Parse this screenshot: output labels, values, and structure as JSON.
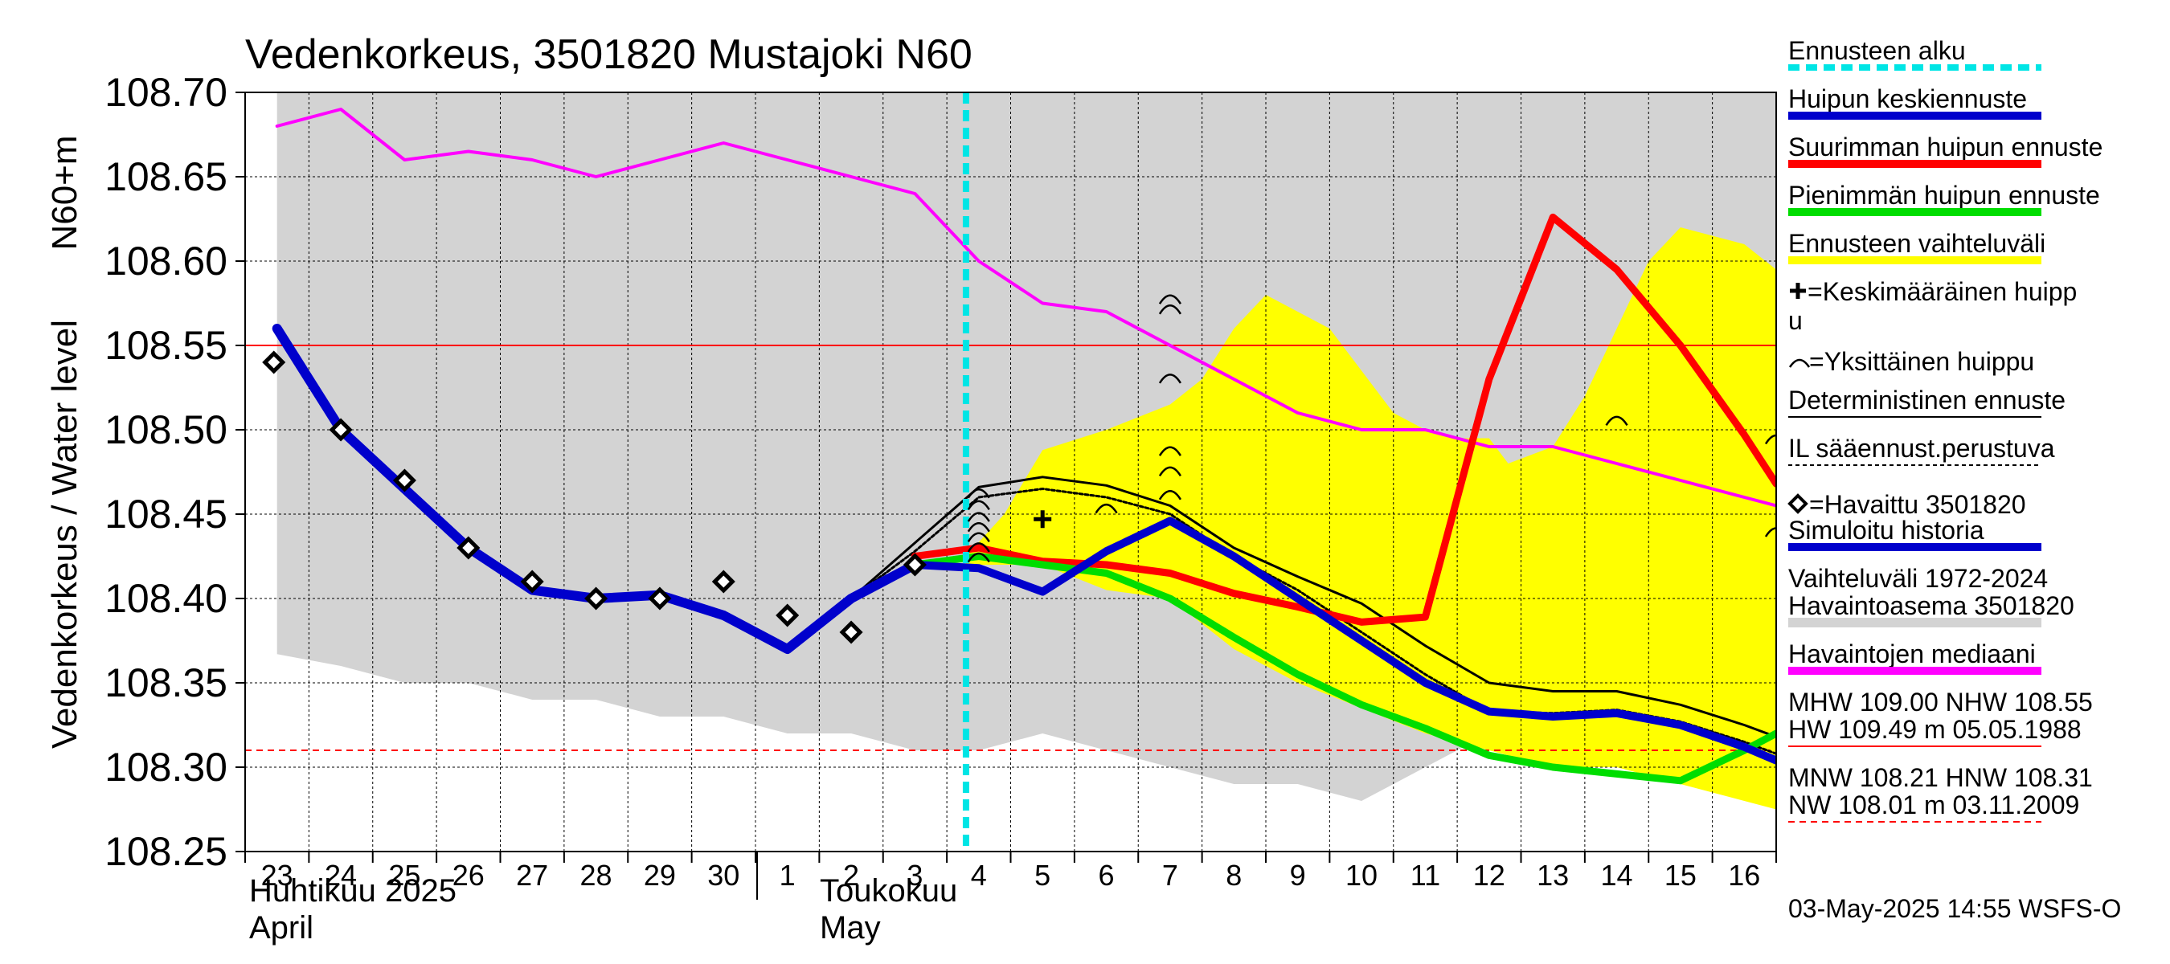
{
  "chart_data": {
    "type": "line",
    "title": "Vedenkorkeus, 3501820 Mustajoki N60",
    "ylabel": "Vedenkorkeus / Water level",
    "ylabel_unit": "N60+m",
    "ylim": [
      108.25,
      108.7
    ],
    "yticks": [
      "108.70",
      "108.65",
      "108.60",
      "108.55",
      "108.50",
      "108.45",
      "108.40",
      "108.35",
      "108.30",
      "108.25"
    ],
    "x_days": [
      "23",
      "24",
      "25",
      "26",
      "27",
      "28",
      "29",
      "30",
      "1",
      "2",
      "3",
      "4",
      "5",
      "6",
      "7",
      "8",
      "9",
      "10",
      "11",
      "12",
      "13",
      "14",
      "15",
      "16"
    ],
    "month_labels": [
      {
        "fi": "Huhtikuu  2025",
        "en": "April"
      },
      {
        "fi": "Toukokuu",
        "en": "May"
      }
    ],
    "forecast_start_day": 10.8,
    "gray_band": {
      "upper": [
        [
          0,
          108.7
        ],
        [
          23.5,
          108.7
        ]
      ],
      "lower": [
        [
          0,
          108.367
        ],
        [
          1,
          108.36
        ],
        [
          2,
          108.35
        ],
        [
          3,
          108.35
        ],
        [
          4,
          108.34
        ],
        [
          5,
          108.34
        ],
        [
          6,
          108.33
        ],
        [
          7,
          108.33
        ],
        [
          8,
          108.32
        ],
        [
          9,
          108.32
        ],
        [
          10,
          108.31
        ],
        [
          11,
          108.31
        ],
        [
          12,
          108.32
        ],
        [
          13,
          108.31
        ],
        [
          14,
          108.3
        ],
        [
          15,
          108.29
        ],
        [
          16,
          108.29
        ],
        [
          17,
          108.28
        ],
        [
          18,
          108.3
        ],
        [
          19,
          108.32
        ],
        [
          20,
          108.32
        ],
        [
          21,
          108.32
        ],
        [
          22,
          108.32
        ],
        [
          23,
          108.33
        ],
        [
          23.5,
          108.33
        ]
      ]
    },
    "yellow_band": {
      "upper": [
        [
          10.8,
          108.425
        ],
        [
          11.4,
          108.45
        ],
        [
          12,
          108.488
        ],
        [
          13,
          108.5
        ],
        [
          14,
          108.515
        ],
        [
          14.5,
          108.53
        ],
        [
          15,
          108.56
        ],
        [
          15.5,
          108.58
        ],
        [
          16,
          108.57
        ],
        [
          16.5,
          108.56
        ],
        [
          17,
          108.535
        ],
        [
          17.5,
          108.51
        ],
        [
          18,
          108.5
        ],
        [
          18.5,
          108.495
        ],
        [
          19,
          108.495
        ],
        [
          19.3,
          108.48
        ],
        [
          20,
          108.49
        ],
        [
          20.5,
          108.52
        ],
        [
          21,
          108.56
        ],
        [
          21.5,
          108.6
        ],
        [
          22,
          108.62
        ],
        [
          23,
          108.61
        ],
        [
          23.5,
          108.595
        ]
      ],
      "lower": [
        [
          23.5,
          108.275
        ],
        [
          23,
          108.28
        ],
        [
          22,
          108.29
        ],
        [
          21,
          108.3
        ],
        [
          20,
          108.3
        ],
        [
          19,
          108.31
        ],
        [
          18,
          108.32
        ],
        [
          17,
          108.335
        ],
        [
          16,
          108.35
        ],
        [
          15,
          108.37
        ],
        [
          14,
          108.4
        ],
        [
          13,
          108.405
        ],
        [
          12,
          108.42
        ],
        [
          11.4,
          108.42
        ],
        [
          10.8,
          108.42
        ]
      ]
    },
    "series": [
      {
        "name": "Havaintojen mediaani",
        "color": "#ff00ff",
        "width": 4,
        "points": [
          [
            0,
            108.68
          ],
          [
            1,
            108.69
          ],
          [
            2,
            108.66
          ],
          [
            3,
            108.665
          ],
          [
            4,
            108.66
          ],
          [
            5,
            108.65
          ],
          [
            6,
            108.66
          ],
          [
            7,
            108.67
          ],
          [
            8,
            108.66
          ],
          [
            9,
            108.65
          ],
          [
            10,
            108.64
          ],
          [
            11,
            108.6
          ],
          [
            12,
            108.575
          ],
          [
            13,
            108.57
          ],
          [
            14,
            108.55
          ],
          [
            15,
            108.53
          ],
          [
            16,
            108.51
          ],
          [
            17,
            108.5
          ],
          [
            18,
            108.5
          ],
          [
            19,
            108.49
          ],
          [
            20,
            108.49
          ],
          [
            21,
            108.48
          ],
          [
            22,
            108.47
          ],
          [
            23,
            108.46
          ],
          [
            23.5,
            108.455
          ]
        ]
      },
      {
        "name": "Simuloitu historia",
        "color": "#0000cc",
        "width": 12,
        "points": [
          [
            0,
            108.56
          ],
          [
            1,
            108.5
          ],
          [
            2,
            108.465
          ],
          [
            3,
            108.43
          ],
          [
            4,
            108.405
          ],
          [
            5,
            108.4
          ],
          [
            6,
            108.402
          ],
          [
            7,
            108.39
          ],
          [
            8,
            108.37
          ],
          [
            9,
            108.4
          ],
          [
            10,
            108.42
          ]
        ]
      },
      {
        "name": "Huipun keskiennuste",
        "color": "#0000cc",
        "width": 10,
        "points": [
          [
            10,
            108.42
          ],
          [
            11,
            108.418
          ],
          [
            12,
            108.404
          ],
          [
            13,
            108.428
          ],
          [
            14,
            108.446
          ],
          [
            15,
            108.425
          ],
          [
            16,
            108.4
          ],
          [
            17,
            108.375
          ],
          [
            18,
            108.35
          ],
          [
            19,
            108.333
          ],
          [
            20,
            108.33
          ],
          [
            21,
            108.332
          ],
          [
            22,
            108.325
          ],
          [
            23,
            108.312
          ],
          [
            23.5,
            108.304
          ]
        ]
      },
      {
        "name": "Suurimman huipun ennuste",
        "color": "#ff0000",
        "width": 9,
        "points": [
          [
            10,
            108.425
          ],
          [
            11,
            108.43
          ],
          [
            12,
            108.422
          ],
          [
            13,
            108.42
          ],
          [
            14,
            108.415
          ],
          [
            15,
            108.403
          ],
          [
            16,
            108.395
          ],
          [
            17,
            108.386
          ],
          [
            18,
            108.389
          ],
          [
            19,
            108.53
          ],
          [
            20,
            108.626
          ],
          [
            21,
            108.595
          ],
          [
            22,
            108.55
          ],
          [
            23,
            108.497
          ],
          [
            23.5,
            108.468
          ]
        ]
      },
      {
        "name": "Pienimmän huipun ennuste",
        "color": "#00dd00",
        "width": 9,
        "points": [
          [
            10,
            108.42
          ],
          [
            11,
            108.425
          ],
          [
            12,
            108.42
          ],
          [
            13,
            108.415
          ],
          [
            14,
            108.4
          ],
          [
            15,
            108.377
          ],
          [
            16,
            108.355
          ],
          [
            17,
            108.337
          ],
          [
            18,
            108.323
          ],
          [
            19,
            108.307
          ],
          [
            20,
            108.3
          ],
          [
            21,
            108.296
          ],
          [
            22,
            108.292
          ],
          [
            23,
            108.31
          ],
          [
            23.5,
            108.32
          ]
        ]
      },
      {
        "name": "Deterministinen ennuste",
        "color": "#000000",
        "width": 3,
        "points": [
          [
            9,
            108.4
          ],
          [
            10,
            108.433
          ],
          [
            11,
            108.466
          ],
          [
            12,
            108.472
          ],
          [
            13,
            108.467
          ],
          [
            14,
            108.455
          ],
          [
            15,
            108.43
          ],
          [
            16,
            108.413
          ],
          [
            17,
            108.397
          ],
          [
            18,
            108.372
          ],
          [
            19,
            108.35
          ],
          [
            20,
            108.345
          ],
          [
            21,
            108.345
          ],
          [
            22,
            108.337
          ],
          [
            23,
            108.325
          ],
          [
            23.5,
            108.318
          ]
        ]
      },
      {
        "name": "IL sääennust.perustuva",
        "color": "#000000",
        "width": 3,
        "points": [
          [
            9,
            108.4
          ],
          [
            10,
            108.428
          ],
          [
            11,
            108.46
          ],
          [
            12,
            108.465
          ],
          [
            13,
            108.46
          ],
          [
            14,
            108.45
          ],
          [
            15,
            108.425
          ],
          [
            16,
            108.405
          ],
          [
            17,
            108.38
          ],
          [
            18,
            108.355
          ],
          [
            19,
            108.333
          ],
          [
            20,
            108.332
          ],
          [
            21,
            108.334
          ],
          [
            22,
            108.327
          ],
          [
            23,
            108.315
          ],
          [
            23.5,
            108.308
          ]
        ]
      }
    ],
    "observed": [
      [
        -0.05,
        108.54
      ],
      [
        1,
        108.5
      ],
      [
        2,
        108.47
      ],
      [
        3,
        108.43
      ],
      [
        4,
        108.41
      ],
      [
        5,
        108.4
      ],
      [
        6,
        108.4
      ],
      [
        7,
        108.41
      ],
      [
        8,
        108.39
      ],
      [
        9,
        108.38
      ],
      [
        10,
        108.42
      ]
    ],
    "mean_peak": [
      [
        12,
        108.447
      ]
    ],
    "single_peaks": [
      [
        11,
        108.425
      ],
      [
        11,
        108.431
      ],
      [
        11,
        108.437
      ],
      [
        11,
        108.443
      ],
      [
        11,
        108.449
      ],
      [
        11,
        108.456
      ],
      [
        11,
        108.463
      ],
      [
        13,
        108.454
      ],
      [
        14,
        108.578
      ],
      [
        14,
        108.572
      ],
      [
        14,
        108.531
      ],
      [
        14,
        108.488
      ],
      [
        14,
        108.476
      ],
      [
        14,
        108.462
      ],
      [
        21,
        108.506
      ],
      [
        23.5,
        108.495
      ],
      [
        23.5,
        108.44
      ]
    ],
    "reference_lines": [
      {
        "label": "HW 109.49 m 05.05.1988 / NHW 108.55",
        "value": 108.55,
        "color": "#ff0000",
        "style": "solid"
      },
      {
        "label": "NW 108.01 m 03.11.2009 / HNW 108.31",
        "value": 108.31,
        "color": "#ff0000",
        "style": "dashed"
      }
    ]
  },
  "legend": {
    "items": [
      {
        "label": "Ennusteen alku",
        "color": "#00e5e5",
        "style": "dashed"
      },
      {
        "label": "Huipun keskiennuste",
        "color": "#0000cc",
        "style": "solid"
      },
      {
        "label": "Suurimman huipun ennuste",
        "color": "#ff0000",
        "style": "solid"
      },
      {
        "label": "Pienimmän huipun ennuste",
        "color": "#00dd00",
        "style": "solid"
      },
      {
        "label": "Ennusteen vaihteluväli",
        "color": "#ffff00",
        "style": "solid"
      },
      {
        "label": "=Keskimääräinen huipp",
        "label2": "u",
        "symbol": "+"
      },
      {
        "label": "=Yksittäinen huippu",
        "symbol": "arc"
      },
      {
        "label": "Deterministinen ennuste",
        "color": "#000000",
        "style": "thin"
      },
      {
        "label": "IL sääennust.perustuva",
        "color": "#000000",
        "style": "dotted"
      },
      {
        "label": "=Havaittu 3501820",
        "symbol": "diamond"
      },
      {
        "label": "Simuloitu historia",
        "color": "#0000cc",
        "style": "solid"
      },
      {
        "label": "Vaihteluväli 1972-2024",
        "label2": " Havaintoasema 3501820",
        "color": "#d3d3d3",
        "style": "solid"
      },
      {
        "label": "Havaintojen mediaani",
        "color": "#ff00ff",
        "style": "solid"
      },
      {
        "label": "MHW 109.00 NHW 108.55",
        "label2": "HW 109.49 m 05.05.1988",
        "color": "#ff0000",
        "style": "solid"
      },
      {
        "label": "MNW 108.21 HNW 108.31",
        "label2": "NW 108.01 m 03.11.2009",
        "color": "#ff0000",
        "style": "dashed"
      }
    ]
  },
  "footer": {
    "timestamp": "03-May-2025 14:55 WSFS-O"
  }
}
